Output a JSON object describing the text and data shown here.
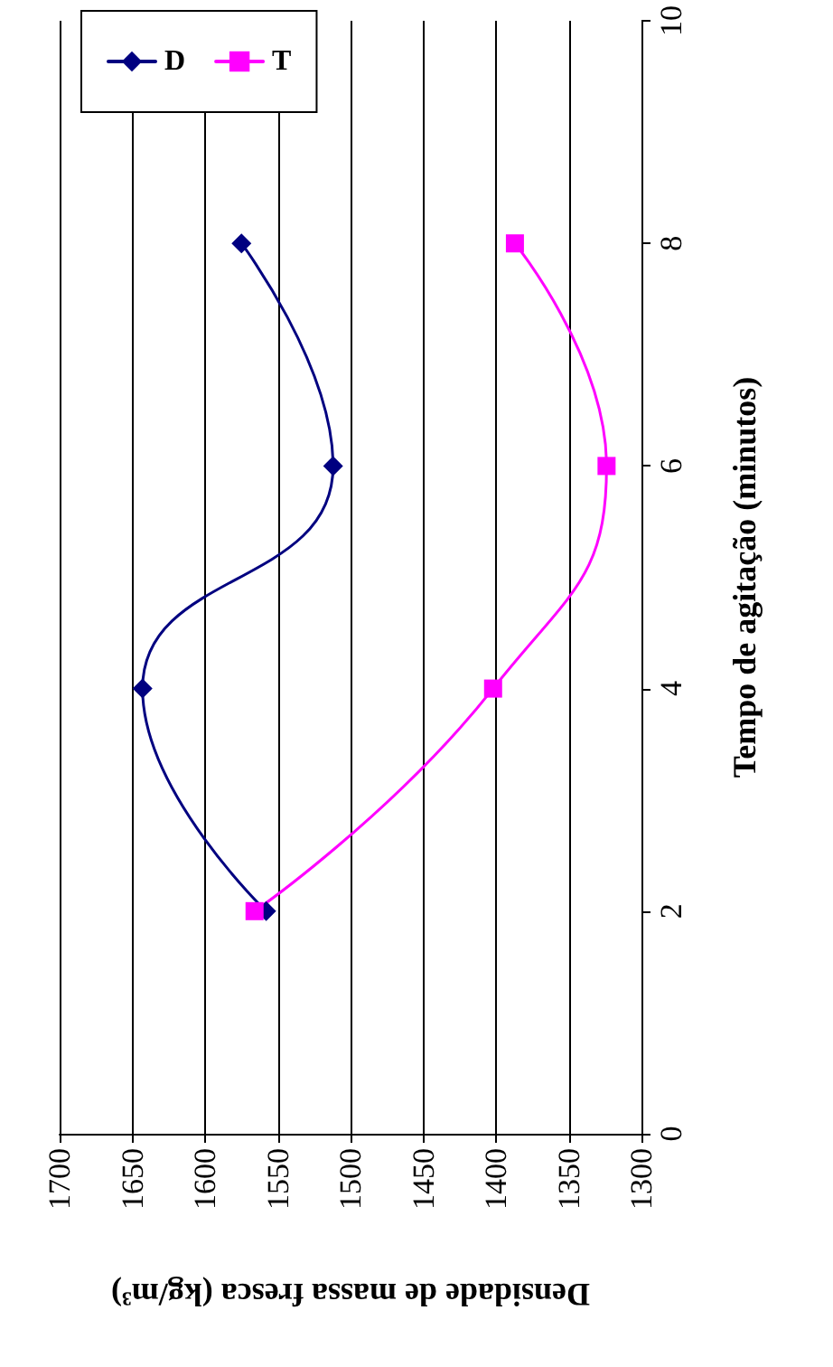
{
  "chart_data": {
    "type": "line",
    "xlabel": "Densidade de massa fresca (kg/m³)",
    "ylabel": "Tempo de agitação (minutos)",
    "series": [
      {
        "name": "D",
        "color": "#000080",
        "marker": "diamond",
        "x": [
          1558,
          1643,
          1512,
          1575
        ],
        "values": [
          2,
          4,
          6,
          8
        ]
      },
      {
        "name": "T",
        "color": "#ff00ff",
        "marker": "square",
        "x": [
          1566,
          1402,
          1324,
          1387
        ],
        "values": [
          2,
          4,
          6,
          8
        ]
      }
    ],
    "xlim": [
      1700,
      1300
    ],
    "xticks": [
      1700,
      1650,
      1600,
      1550,
      1500,
      1450,
      1400,
      1350,
      1300
    ],
    "ylim": [
      0,
      10
    ],
    "yticks": [
      0,
      2,
      4,
      6,
      8,
      10
    ],
    "grid": "x",
    "legend": "top left",
    "line_style": "solid"
  }
}
